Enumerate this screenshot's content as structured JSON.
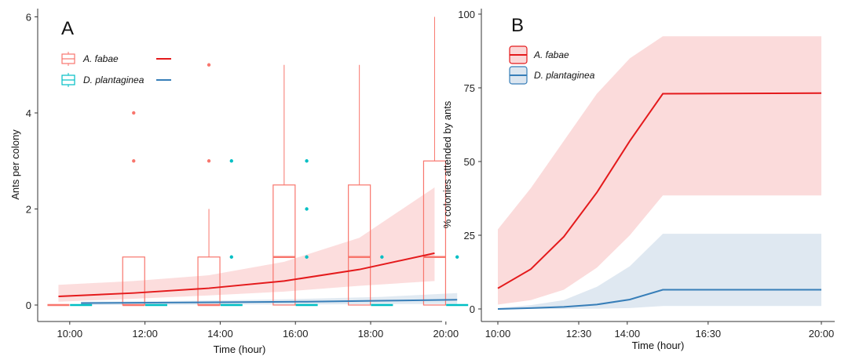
{
  "chart_data": [
    {
      "panel": "A",
      "type": "box",
      "xlabel": "Time (hour)",
      "ylabel": "Ants per colony",
      "ylim": [
        0,
        6
      ],
      "y_ticks": [
        0,
        2,
        4,
        6
      ],
      "x_tick_labels": [
        "10:00",
        "12:00",
        "14:00",
        "16:00",
        "18:00",
        "20:00"
      ],
      "x_tick_hours": [
        10,
        12,
        14,
        16,
        18,
        20
      ],
      "colors": {
        "A. fabae box": "#f8766d",
        "D. plantaginea box": "#00bfc4",
        "A. fabae fit": "#e41a1c",
        "D. plantaginea fit": "#377eb8",
        "A. fabae ribbon": "#fbd7d7",
        "D. plantaginea ribbon": "#dce6f0"
      },
      "legend": [
        {
          "key": "fabae",
          "label": "A. fabae"
        },
        {
          "key": "plantaginea",
          "label": "D. plantaginea"
        }
      ],
      "boxes": [
        {
          "series": "fabae",
          "x": 9.7,
          "q1": 0,
          "median": 0,
          "q3": 0,
          "whisker_low": 0,
          "whisker_high": 0,
          "outliers": []
        },
        {
          "series": "plantaginea",
          "x": 10.3,
          "q1": 0,
          "median": 0,
          "q3": 0,
          "whisker_low": 0,
          "whisker_high": 0,
          "outliers": []
        },
        {
          "series": "fabae",
          "x": 11.7,
          "q1": 0,
          "median": 0,
          "q3": 1,
          "whisker_low": 0,
          "whisker_high": 1,
          "outliers": [
            3,
            4
          ]
        },
        {
          "series": "plantaginea",
          "x": 12.3,
          "q1": 0,
          "median": 0,
          "q3": 0,
          "whisker_low": 0,
          "whisker_high": 0,
          "outliers": []
        },
        {
          "series": "fabae",
          "x": 13.7,
          "q1": 0,
          "median": 0,
          "q3": 1,
          "whisker_low": 0,
          "whisker_high": 2,
          "outliers": [
            3,
            5
          ]
        },
        {
          "series": "plantaginea",
          "x": 14.3,
          "q1": 0,
          "median": 0,
          "q3": 0,
          "whisker_low": 0,
          "whisker_high": 0,
          "outliers": [
            1,
            3
          ]
        },
        {
          "series": "fabae",
          "x": 15.7,
          "q1": 0,
          "median": 1,
          "q3": 2.5,
          "whisker_low": 0,
          "whisker_high": 5,
          "outliers": []
        },
        {
          "series": "plantaginea",
          "x": 16.3,
          "q1": 0,
          "median": 0,
          "q3": 0,
          "whisker_low": 0,
          "whisker_high": 0,
          "outliers": [
            1,
            2,
            3
          ]
        },
        {
          "series": "fabae",
          "x": 17.7,
          "q1": 0,
          "median": 1,
          "q3": 2.5,
          "whisker_low": 0,
          "whisker_high": 5,
          "outliers": []
        },
        {
          "series": "plantaginea",
          "x": 18.3,
          "q1": 0,
          "median": 0,
          "q3": 0,
          "whisker_low": 0,
          "whisker_high": 0,
          "outliers": [
            1
          ]
        },
        {
          "series": "fabae",
          "x": 19.7,
          "q1": 0,
          "median": 1,
          "q3": 3,
          "whisker_low": 0,
          "whisker_high": 6,
          "outliers": []
        },
        {
          "series": "plantaginea",
          "x": 20.3,
          "q1": 0,
          "median": 0,
          "q3": 0,
          "whisker_low": 0,
          "whisker_high": 0,
          "outliers": [
            1
          ]
        }
      ],
      "fits": [
        {
          "series": "fabae",
          "x": [
            9.7,
            11.7,
            13.7,
            15.7,
            17.7,
            19.7
          ],
          "y": [
            0.18,
            0.25,
            0.35,
            0.5,
            0.74,
            1.08
          ],
          "lower": [
            0.07,
            0.13,
            0.2,
            0.28,
            0.4,
            0.5
          ],
          "upper": [
            0.42,
            0.5,
            0.62,
            0.9,
            1.4,
            2.45
          ]
        },
        {
          "series": "plantaginea",
          "x": [
            10.3,
            12.3,
            14.3,
            16.3,
            18.3,
            20.3
          ],
          "y": [
            0.04,
            0.05,
            0.06,
            0.07,
            0.09,
            0.11
          ],
          "lower": [
            0.0,
            0.0,
            0.01,
            0.01,
            0.02,
            0.02
          ],
          "upper": [
            0.07,
            0.08,
            0.1,
            0.13,
            0.17,
            0.25
          ]
        }
      ]
    },
    {
      "panel": "B",
      "type": "line",
      "xlabel": "Time (hour)",
      "ylabel": "% colonies attended by ants",
      "ylim": [
        0,
        100
      ],
      "y_ticks": [
        0,
        25,
        50,
        75,
        100
      ],
      "x_tick_labels": [
        "10:00",
        "12:30",
        "14:00",
        "16:30",
        "20:00"
      ],
      "x_tick_hours": [
        10,
        12.5,
        14,
        16.5,
        20
      ],
      "legend": [
        {
          "key": "fabae",
          "label": "A. fabae"
        },
        {
          "key": "plantaginea",
          "label": "D. plantaginea"
        }
      ],
      "series": [
        {
          "key": "fabae",
          "name": "A. fabae",
          "color": "#e41a1c",
          "fill": "#fbd7d7",
          "x": [
            10,
            11.02,
            12.04,
            13.06,
            14.08,
            15.1,
            20
          ],
          "y": [
            7,
            13.5,
            24.5,
            39.5,
            57,
            73,
            73.2
          ],
          "lower": [
            1.5,
            3,
            6.5,
            14,
            25,
            38.5,
            38.5
          ],
          "upper": [
            27,
            41,
            57,
            73,
            85,
            92.5,
            92.5
          ]
        },
        {
          "key": "plantaginea",
          "name": "D. plantaginea",
          "color": "#377eb8",
          "fill": "#dce6f0",
          "x": [
            10,
            11.02,
            12.04,
            13.06,
            14.08,
            15.1,
            20
          ],
          "y": [
            0,
            0.3,
            0.7,
            1.5,
            3.2,
            6.5,
            6.5
          ],
          "lower": [
            0,
            0,
            0,
            0.1,
            0.3,
            1,
            1
          ],
          "upper": [
            0.3,
            1.3,
            3,
            7.5,
            14.5,
            25.5,
            25.5
          ]
        }
      ]
    }
  ]
}
